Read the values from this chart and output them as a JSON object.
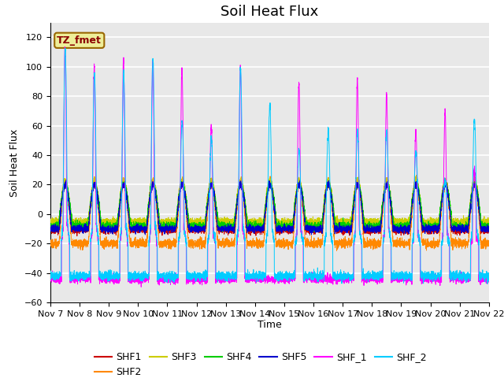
{
  "title": "Soil Heat Flux",
  "xlabel": "Time",
  "ylabel": "Soil Heat Flux",
  "xlim_days": [
    7,
    22
  ],
  "ylim": [
    -60,
    130
  ],
  "yticks": [
    -60,
    -40,
    -20,
    0,
    20,
    40,
    60,
    80,
    100,
    120
  ],
  "xtick_labels": [
    "Nov 7",
    "Nov 8",
    "Nov 9",
    "Nov 10",
    "Nov 11",
    "Nov 12",
    "Nov 13",
    "Nov 14",
    "Nov 15",
    "Nov 16",
    "Nov 17",
    "Nov 18",
    "Nov 19",
    "Nov 20",
    "Nov 21",
    "Nov 22"
  ],
  "series_colors": {
    "SHF1": "#cc0000",
    "SHF2": "#ff8800",
    "SHF3": "#cccc00",
    "SHF4": "#00cc00",
    "SHF5": "#0000cc",
    "SHF_1": "#ff00ff",
    "SHF_2": "#00ccff"
  },
  "annotation_text": "TZ_fmet",
  "annotation_color": "#8b0000",
  "annotation_bg": "#eeee99",
  "background_color": "#e8e8e8",
  "grid_color": "#ffffff",
  "title_fontsize": 13,
  "label_fontsize": 9,
  "tick_fontsize": 8,
  "legend_fontsize": 9
}
